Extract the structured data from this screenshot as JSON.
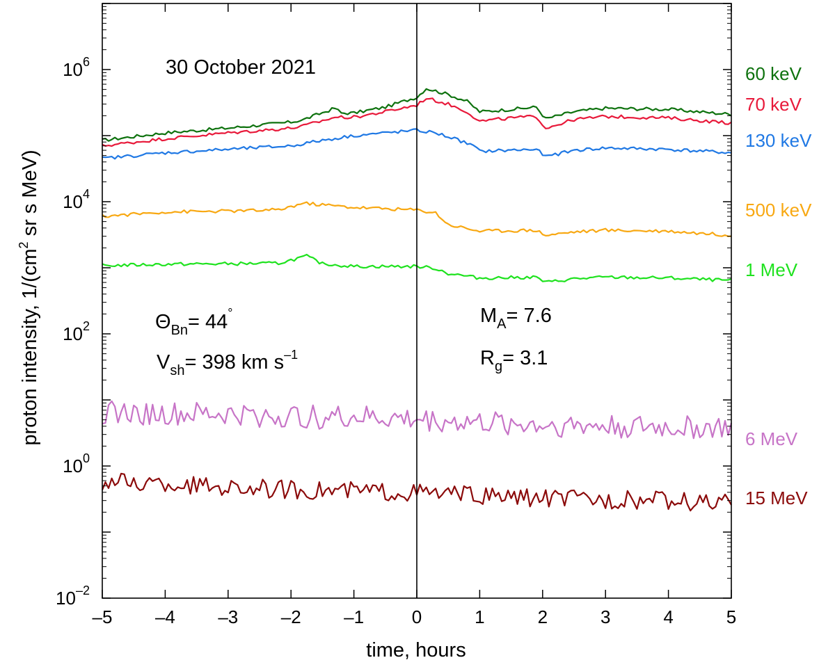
{
  "chart_data": {
    "type": "line",
    "title": "30 October 2021",
    "xlabel": "time, hours",
    "ylabel": {
      "pre": "proton intensity, 1/(cm",
      "sup": "2",
      "post": " sr s MeV)"
    },
    "xlim": [
      -5,
      5
    ],
    "ylim_log10": [
      -2,
      7
    ],
    "y_scale": "log",
    "x_ticks": [
      -5,
      -4,
      -3,
      -2,
      -1,
      0,
      1,
      2,
      3,
      4,
      5
    ],
    "x_tick_labels": [
      "–5",
      "–4",
      "–3",
      "–2",
      "–1",
      "0",
      "1",
      "2",
      "3",
      "4",
      "5"
    ],
    "y_ticks": [
      {
        "exp": -2,
        "base": "10",
        "sup": "–2"
      },
      {
        "exp": 0,
        "base": "10",
        "sup": "0"
      },
      {
        "exp": 2,
        "base": "10",
        "sup": "2"
      },
      {
        "exp": 4,
        "base": "10",
        "sup": "4"
      },
      {
        "exp": 6,
        "base": "10",
        "sup": "6"
      }
    ],
    "shock_time": 0,
    "annotations": {
      "theta": {
        "sym": "Θ",
        "sub": "Bn",
        "rest": "= 44",
        "sup": "°"
      },
      "vsh": {
        "sym": "V",
        "sub": "sh",
        "rest": "= 398 km s",
        "sup": "–1"
      },
      "ma": {
        "sym": "M",
        "sub": "A",
        "rest": "= 7.6"
      },
      "rg": {
        "sym": "R",
        "sub": "g",
        "rest": "= 3.1"
      }
    },
    "series": [
      {
        "name": "60 keV",
        "color": "#0e720e",
        "points": [
          [
            -5,
            85000
          ],
          [
            -4,
            110000
          ],
          [
            -3,
            130000
          ],
          [
            -2,
            160000
          ],
          [
            -1.8,
            175000
          ],
          [
            -1.3,
            260000
          ],
          [
            -1.2,
            220000
          ],
          [
            -1,
            220000
          ],
          [
            -0.5,
            270000
          ],
          [
            -0.05,
            370000
          ],
          [
            0,
            380000
          ],
          [
            0.15,
            520000
          ],
          [
            0.5,
            420000
          ],
          [
            0.8,
            330000
          ],
          [
            1,
            230000
          ],
          [
            1.5,
            250000
          ],
          [
            1.9,
            270000
          ],
          [
            2.05,
            180000
          ],
          [
            2.5,
            230000
          ],
          [
            3,
            260000
          ],
          [
            4,
            250000
          ],
          [
            5,
            210000
          ]
        ],
        "jitter": 0.025
      },
      {
        "name": "70 keV",
        "color": "#e8193a",
        "points": [
          [
            -5,
            70000
          ],
          [
            -4,
            90000
          ],
          [
            -3,
            110000
          ],
          [
            -2,
            130000
          ],
          [
            -1.8,
            140000
          ],
          [
            -1.3,
            190000
          ],
          [
            -1,
            190000
          ],
          [
            -0.5,
            230000
          ],
          [
            0,
            290000
          ],
          [
            0.15,
            370000
          ],
          [
            0.5,
            300000
          ],
          [
            0.8,
            230000
          ],
          [
            1,
            165000
          ],
          [
            1.5,
            185000
          ],
          [
            1.9,
            195000
          ],
          [
            2.05,
            130000
          ],
          [
            2.5,
            175000
          ],
          [
            3,
            195000
          ],
          [
            4,
            185000
          ],
          [
            5,
            155000
          ]
        ],
        "jitter": 0.025
      },
      {
        "name": "130 keV",
        "color": "#1f78e4",
        "points": [
          [
            -5,
            45000
          ],
          [
            -4,
            55000
          ],
          [
            -3,
            62000
          ],
          [
            -2,
            70000
          ],
          [
            -1.5,
            85000
          ],
          [
            -1,
            100000
          ],
          [
            -0.5,
            110000
          ],
          [
            0,
            120000
          ],
          [
            0.3,
            110000
          ],
          [
            0.6,
            90000
          ],
          [
            0.9,
            70000
          ],
          [
            1,
            58000
          ],
          [
            1.9,
            62000
          ],
          [
            2.05,
            48000
          ],
          [
            2.5,
            60000
          ],
          [
            3,
            65000
          ],
          [
            4,
            62000
          ],
          [
            5,
            55000
          ]
        ],
        "jitter": 0.025
      },
      {
        "name": "500 keV",
        "color": "#f8a812",
        "points": [
          [
            -5,
            6000
          ],
          [
            -4,
            7000
          ],
          [
            -3,
            7200
          ],
          [
            -2.2,
            7500
          ],
          [
            -1.8,
            9500
          ],
          [
            -1,
            8200
          ],
          [
            0,
            7500
          ],
          [
            0.3,
            6800
          ],
          [
            0.5,
            4500
          ],
          [
            1,
            3600
          ],
          [
            1.9,
            3700
          ],
          [
            2.05,
            3100
          ],
          [
            2.5,
            3500
          ],
          [
            3,
            3700
          ],
          [
            4,
            3600
          ],
          [
            5,
            3100
          ]
        ],
        "jitter": 0.025
      },
      {
        "name": "1 MeV",
        "color": "#1ee21e",
        "points": [
          [
            -5,
            1080
          ],
          [
            -4,
            1130
          ],
          [
            -3,
            1150
          ],
          [
            -2.2,
            1170
          ],
          [
            -1.75,
            1500
          ],
          [
            -1.5,
            1150
          ],
          [
            -1,
            1050
          ],
          [
            0,
            1050
          ],
          [
            0.3,
            980
          ],
          [
            0.5,
            820
          ],
          [
            1,
            700
          ],
          [
            1.9,
            720
          ],
          [
            2.05,
            600
          ],
          [
            2.5,
            680
          ],
          [
            3,
            720
          ],
          [
            4,
            700
          ],
          [
            5,
            640
          ]
        ],
        "jitter": 0.025
      },
      {
        "name": "6 MeV",
        "color": "#c774c7",
        "points": [
          [
            -5,
            6.5
          ],
          [
            -4,
            6
          ],
          [
            -3,
            6
          ],
          [
            -2,
            5.5
          ],
          [
            -1,
            5.5
          ],
          [
            0,
            5
          ],
          [
            1,
            4.5
          ],
          [
            2,
            4.2
          ],
          [
            3,
            4
          ],
          [
            4,
            3.8
          ],
          [
            5,
            3.8
          ]
        ],
        "jitter": 0.18
      },
      {
        "name": "15 MeV",
        "color": "#8b0a0a",
        "points": [
          [
            -5,
            0.58
          ],
          [
            -4,
            0.52
          ],
          [
            -3,
            0.48
          ],
          [
            -2,
            0.44
          ],
          [
            -1,
            0.42
          ],
          [
            0,
            0.4
          ],
          [
            1,
            0.35
          ],
          [
            2,
            0.33
          ],
          [
            3,
            0.31
          ],
          [
            4,
            0.3
          ],
          [
            5,
            0.27
          ]
        ],
        "jitter": 0.14
      }
    ]
  }
}
